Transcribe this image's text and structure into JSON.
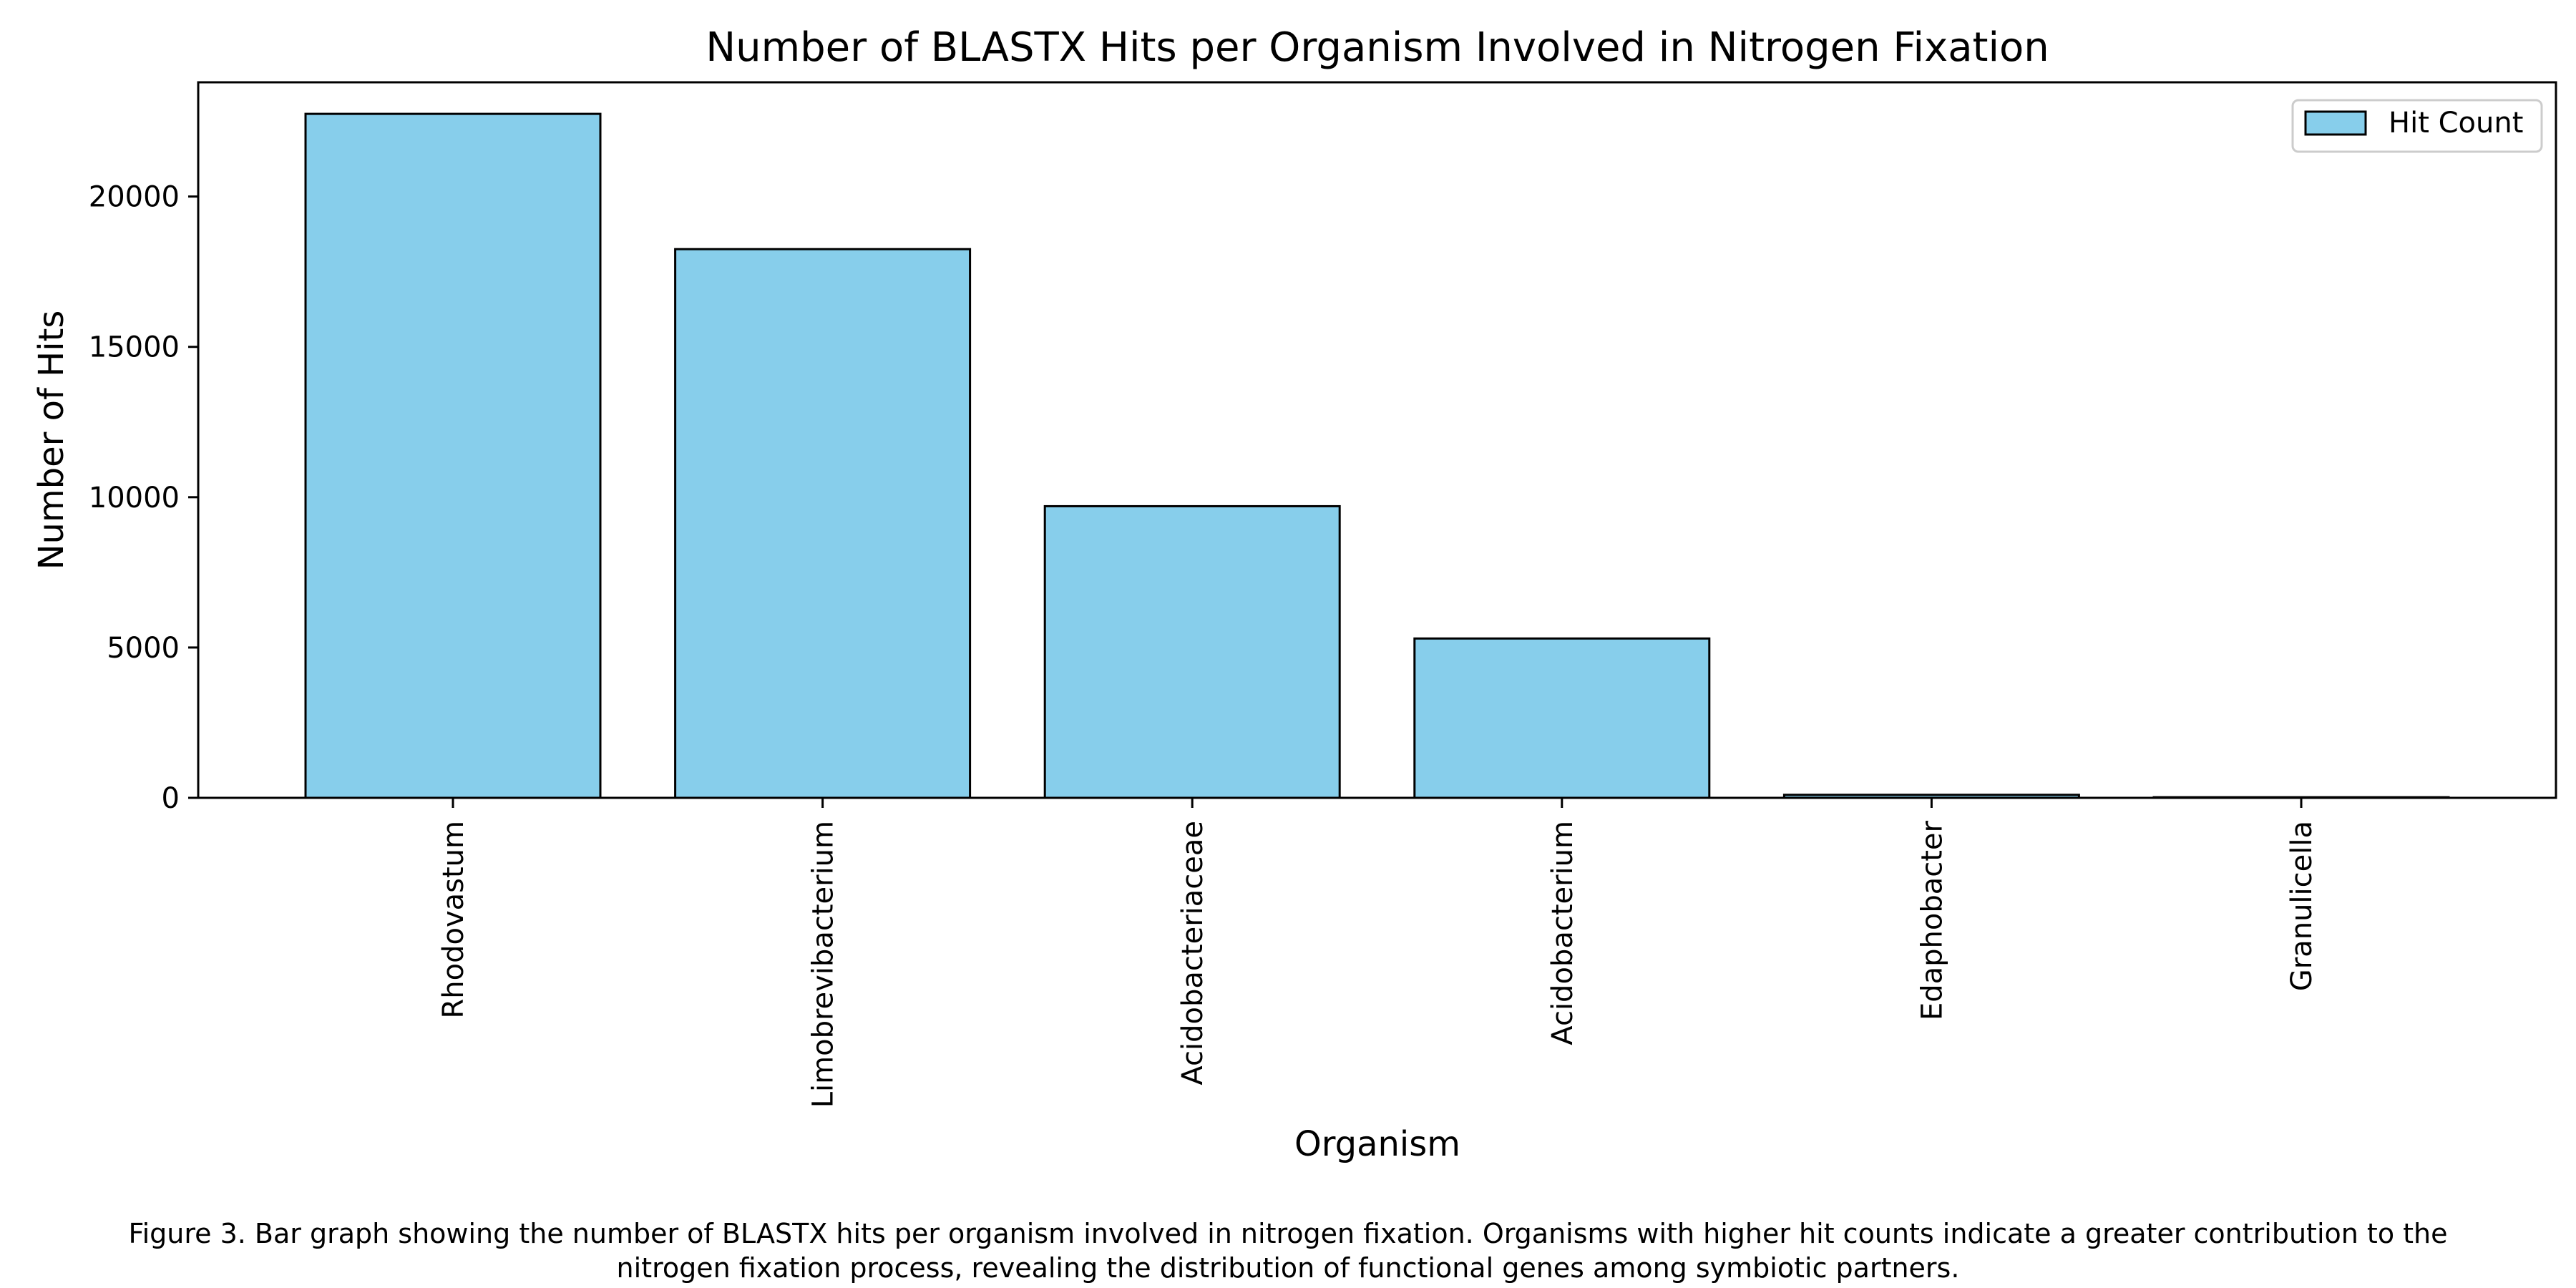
{
  "chart_data": {
    "type": "bar",
    "title": "Number of BLASTX Hits per Organism Involved in Nitrogen Fixation",
    "xlabel": "Organism",
    "ylabel": "Number of Hits",
    "categories": [
      "Rhodovastum",
      "Limobrevibacterium",
      "Acidobacteriaceae",
      "Acidobacterium",
      "Edaphobacter",
      "Granulicella"
    ],
    "series": [
      {
        "name": "Hit Count",
        "values": [
          22750,
          18250,
          9700,
          5300,
          100,
          20
        ]
      }
    ],
    "ylim": [
      0,
      23800
    ],
    "yticks": [
      0,
      5000,
      10000,
      15000,
      20000
    ],
    "ytick_labels": [
      "0",
      "5000",
      "10000",
      "15000",
      "20000"
    ],
    "legend_position": "upper right",
    "grid": false,
    "colors": {
      "bar_fill": "#87CEEB",
      "bar_edge": "#000000"
    }
  },
  "caption": {
    "line1": "Figure 3. Bar graph showing the number of BLASTX hits per organism involved in nitrogen fixation. Organisms with higher hit counts indicate a greater contribution to the",
    "line2": "nitrogen fixation process, revealing the distribution of functional genes among symbiotic partners."
  }
}
